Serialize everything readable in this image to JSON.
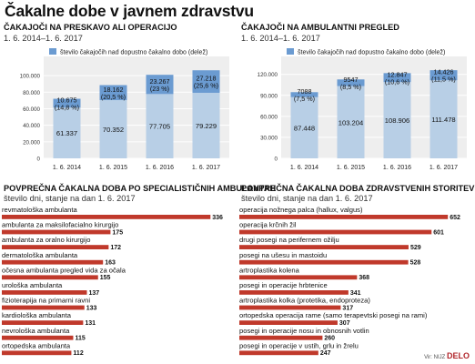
{
  "title": "Čakalne dobe v javnem zdravstvu",
  "footer": {
    "credit": "Vir: NIJZ",
    "brand": "DELO"
  },
  "colors": {
    "light_blue": "#b8cfe6",
    "dark_blue": "#6b9bd1",
    "red": "#c0392b"
  },
  "panels": {
    "tl": {
      "title": "ČAKAJOČI NA PRESKAVO ALI OPERACIJO",
      "subtitle": "1. 6. 2014–1. 6. 2017"
    },
    "tr": {
      "title": "ČAKAJOČI NA AMBULANTNI PREGLED",
      "subtitle": "1. 6. 2014–1. 6. 2017"
    },
    "bl": {
      "title": "POVPREČNA ČAKALNA DOBA PO SPECIALISTIČNIH AMBULANTAH",
      "subtitle": "število dni, stanje na dan 1. 6. 2017"
    },
    "br": {
      "title": "POVPREČNA ČAKALNA DOBA ZDRAVSTVENIH STORITEV",
      "subtitle": "število dni, stanje na dan 1. 6. 2017"
    }
  },
  "chart_data": [
    {
      "type": "bar",
      "legend": "število čakajočih nad dopustno čakalno dobo (delež)",
      "categories": [
        "1. 6. 2014",
        "1. 6. 2015",
        "1. 6. 2016",
        "1. 6. 2017"
      ],
      "yticks": [
        "0",
        "20.000",
        "40.000",
        "60.000",
        "80.000",
        "100.000"
      ],
      "ylim": [
        0,
        110000
      ],
      "series": [
        {
          "values": [
            61337,
            70352,
            77705,
            79229
          ],
          "labels": [
            "61.337",
            "70.352",
            "77.705",
            "79.229"
          ]
        },
        {
          "name": "število čakajočih nad dopustno čakalno dobo (delež)",
          "values": [
            10675,
            18162,
            23267,
            27218
          ],
          "labels": [
            "10.675",
            "18.162",
            "23.267",
            "27.218"
          ],
          "shares": [
            "(14,8 %)",
            "(20,5 %)",
            "(23 %)",
            "(25,6 %)"
          ]
        }
      ]
    },
    {
      "type": "bar",
      "legend": "število čakajočih nad dopustno čakalno dobo (delež)",
      "categories": [
        "1. 6. 2014",
        "1. 6. 2015",
        "1. 6. 2016",
        "1. 6. 2017"
      ],
      "yticks": [
        "0",
        "30.000",
        "60.000",
        "90.000",
        "120.000"
      ],
      "ylim": [
        0,
        130000
      ],
      "series": [
        {
          "values": [
            87448,
            103204,
            108906,
            111478
          ],
          "labels": [
            "87.448",
            "103.204",
            "108.906",
            "111.478"
          ]
        },
        {
          "name": "število čakajočih nad dopustno čakalno dobo (delež)",
          "values": [
            7088,
            9547,
            12847,
            14426
          ],
          "labels": [
            "7088",
            "9547",
            "12.847",
            "14.426"
          ],
          "shares": [
            "(7,5 %)",
            "(8,5 %)",
            "(10,6 %)",
            "(11,5 %)"
          ]
        }
      ]
    },
    {
      "type": "bar",
      "orientation": "horizontal",
      "categories": [
        "revmatološka ambulanta",
        "ambulanta za maksilofacialno kirurgijo",
        "ambulanta za oralno kirurgijo",
        "dermatološka ambulanta",
        "očesna ambulanta pregled vida za očala",
        "urološka ambulanta",
        "fizioterapija na primarni ravni",
        "kardiološka ambulanta",
        "nevrološka ambulanta",
        "ortopedska ambulanta"
      ],
      "values": [
        336,
        175,
        172,
        163,
        155,
        137,
        133,
        131,
        115,
        112
      ],
      "xlim": [
        0,
        340
      ]
    },
    {
      "type": "bar",
      "orientation": "horizontal",
      "categories": [
        "operacija nožnega palca (hallux, valgus)",
        "operacija krčnih žil",
        "drugi posegi na perifernem ožilju",
        "posegi na ušesu in mastoidu",
        "artroplastika kolena",
        "posegi in operacije hrbtenice",
        "artroplastika kolka (protetika, endoproteza)",
        "ortopedska operacija rame (samo terapevtski posegi na rami)",
        "posegi in operacije nosu in obnosnih votlin",
        "posegi in operacije v ustih, grlu in žrelu"
      ],
      "values": [
        652,
        601,
        529,
        528,
        368,
        341,
        317,
        307,
        260,
        247
      ],
      "xlim": [
        0,
        660
      ]
    }
  ]
}
